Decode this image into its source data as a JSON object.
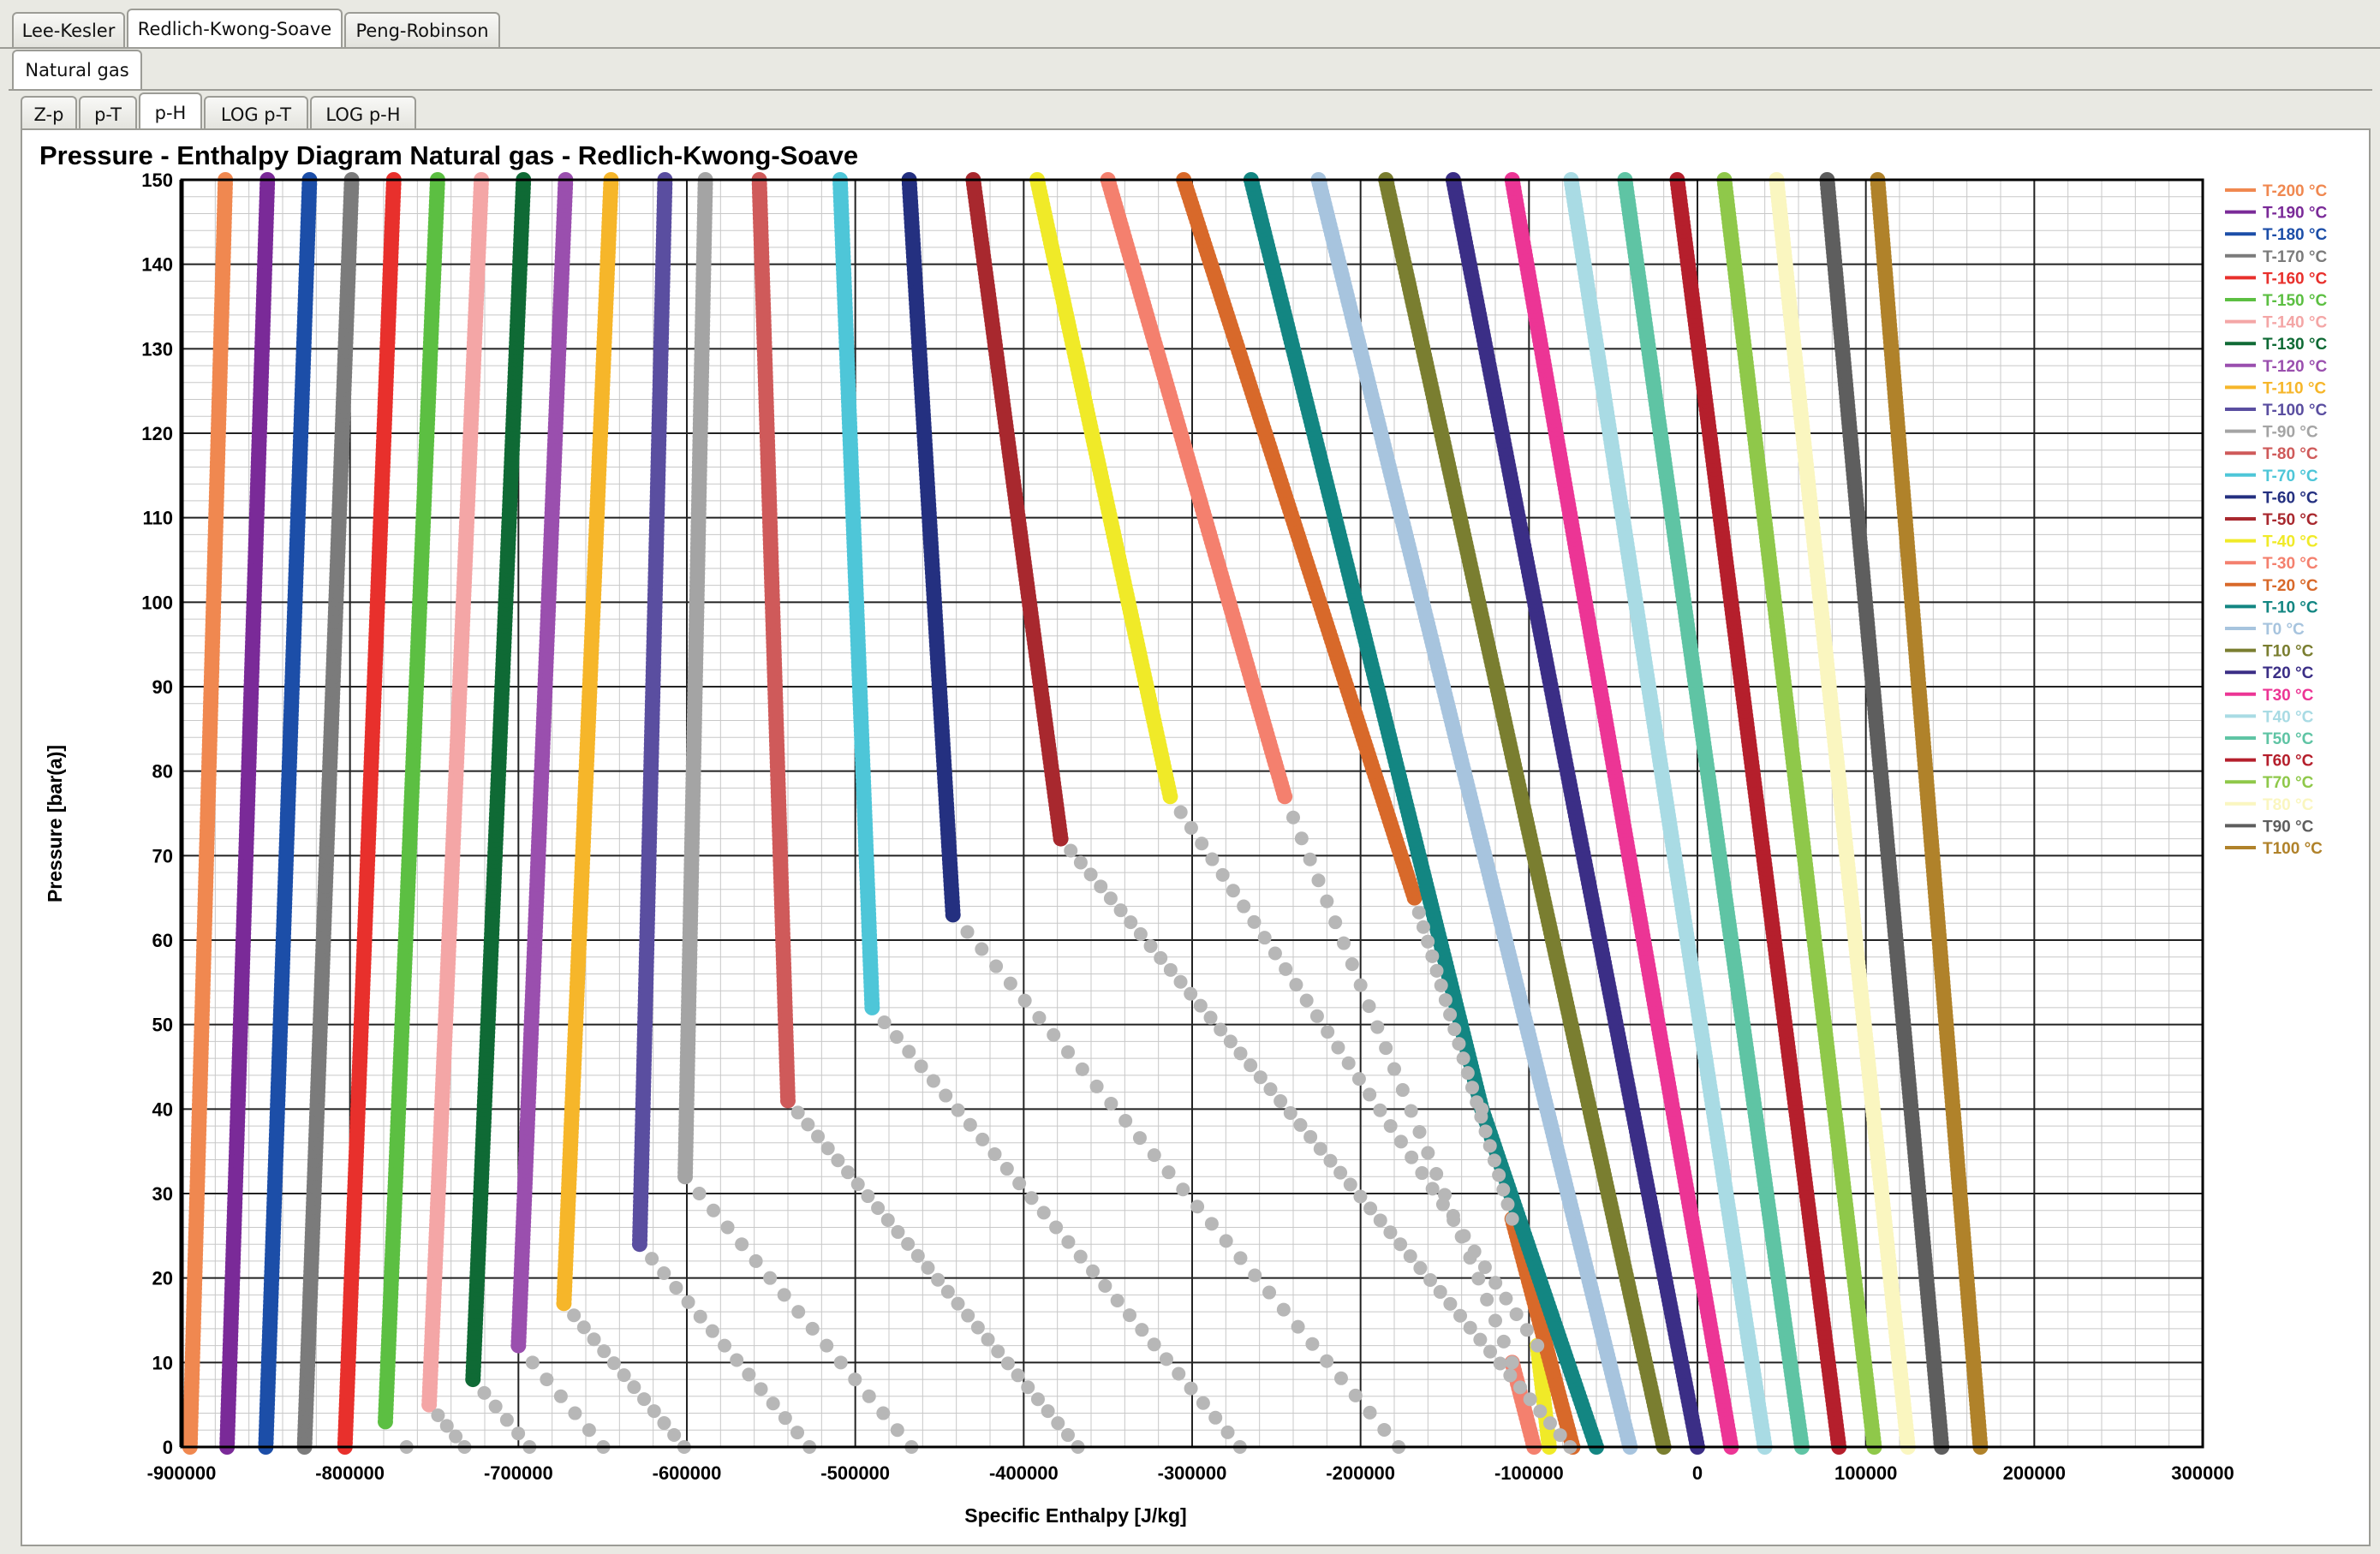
{
  "tabs_eos": [
    {
      "label": "Lee-Kesler",
      "active": false
    },
    {
      "label": "Redlich-Kwong-Soave",
      "active": true
    },
    {
      "label": "Peng-Robinson",
      "active": false
    }
  ],
  "tabs_fluid": [
    {
      "label": "Natural gas",
      "active": true
    }
  ],
  "tabs_view": [
    {
      "label": "Z-p",
      "active": false
    },
    {
      "label": "p-T",
      "active": false
    },
    {
      "label": "p-H",
      "active": true
    },
    {
      "label": "LOG p-T",
      "active": false
    },
    {
      "label": "LOG p-H",
      "active": false
    }
  ],
  "chart_data": {
    "type": "scatter",
    "title": "Pressure - Enthalpy Diagram Natural gas - Redlich-Kwong-Soave",
    "xlabel": "Specific Enthalpy [J/kg]",
    "ylabel": "Pressure [bar(a)]",
    "xlim": [
      -900000,
      300000
    ],
    "ylim": [
      0,
      150
    ],
    "xticks": [
      -900000,
      -800000,
      -700000,
      -600000,
      -500000,
      -400000,
      -300000,
      -200000,
      -100000,
      0,
      100000,
      200000,
      300000
    ],
    "yticks": [
      0,
      10,
      20,
      30,
      40,
      50,
      60,
      70,
      80,
      90,
      100,
      110,
      120,
      130,
      140,
      150
    ],
    "grid": true,
    "legend_position": "right",
    "series": [
      {
        "name": "T-200 °C",
        "color": "#f08850",
        "label_color": "#f08850",
        "liquid": [
          [
            -895000,
            0
          ],
          [
            -874000,
            150
          ]
        ]
      },
      {
        "name": "T-190 °C",
        "color": "#7a2a98",
        "label_color": "#7a2a98",
        "liquid": [
          [
            -873000,
            0
          ],
          [
            -849000,
            150
          ]
        ]
      },
      {
        "name": "T-180 °C",
        "color": "#1c4ea8",
        "label_color": "#1c4ea8",
        "liquid": [
          [
            -850000,
            0
          ],
          [
            -824000,
            150
          ]
        ]
      },
      {
        "name": "T-170 °C",
        "color": "#7b7b7b",
        "label_color": "#7b7b7b",
        "liquid": [
          [
            -827000,
            0
          ],
          [
            -799000,
            150
          ]
        ]
      },
      {
        "name": "T-160 °C",
        "color": "#e8302c",
        "label_color": "#e8302c",
        "liquid": [
          [
            -803000,
            0
          ],
          [
            -774000,
            150
          ]
        ]
      },
      {
        "name": "T-150 °C",
        "color": "#5cbf42",
        "label_color": "#5cbf42",
        "liquid": [
          [
            -779000,
            3
          ],
          [
            -748000,
            150
          ]
        ]
      },
      {
        "name": "T-140 °C",
        "color": "#f4a6a6",
        "label_color": "#f4a6a6",
        "liquid": [
          [
            -753000,
            5
          ],
          [
            -722000,
            150
          ]
        ]
      },
      {
        "name": "T-130 °C",
        "color": "#0f6a35",
        "label_color": "#0f6a35",
        "liquid": [
          [
            -727000,
            8
          ],
          [
            -697000,
            150
          ]
        ]
      },
      {
        "name": "T-120 °C",
        "color": "#9a4fae",
        "label_color": "#9a4fae",
        "liquid": [
          [
            -700000,
            12
          ],
          [
            -672000,
            150
          ]
        ]
      },
      {
        "name": "T-110 °C",
        "color": "#f6b62a",
        "label_color": "#f6b62a",
        "liquid": [
          [
            -673000,
            17
          ],
          [
            -645000,
            150
          ]
        ]
      },
      {
        "name": "T-100 °C",
        "color": "#5a4ea0",
        "label_color": "#5a4ea0",
        "liquid": [
          [
            -628000,
            24
          ],
          [
            -613000,
            150
          ]
        ]
      },
      {
        "name": "T-90 °C",
        "color": "#a4a4a4",
        "label_color": "#a4a4a4",
        "liquid": [
          [
            -601000,
            32
          ],
          [
            -589000,
            150
          ]
        ]
      },
      {
        "name": "T-80 °C",
        "color": "#cf5a5a",
        "label_color": "#cf5a5a",
        "liquid": [
          [
            -540000,
            41
          ],
          [
            -557000,
            150
          ]
        ]
      },
      {
        "name": "T-70 °C",
        "color": "#4ec6d8",
        "label_color": "#4ec6d8",
        "liquid": [
          [
            -490000,
            52
          ],
          [
            -509000,
            150
          ]
        ]
      },
      {
        "name": "T-60 °C",
        "color": "#243080",
        "label_color": "#243080",
        "liquid": [
          [
            -442000,
            63
          ],
          [
            -468000,
            150
          ]
        ]
      },
      {
        "name": "T-50 °C",
        "color": "#a8282e",
        "label_color": "#a8282e",
        "liquid": [
          [
            -378000,
            72
          ],
          [
            -430000,
            150
          ]
        ]
      },
      {
        "name": "T-40 °C",
        "color": "#f0ea28",
        "label_color": "#f0ea28",
        "liquid": [
          [
            -313000,
            77
          ],
          [
            -392000,
            150
          ]
        ],
        "vapor": [
          [
            -95000,
            12
          ],
          [
            -88000,
            0
          ]
        ]
      },
      {
        "name": "T-30 °C",
        "color": "#f4806e",
        "label_color": "#f4806e",
        "liquid": [
          [
            -245000,
            77
          ],
          [
            -350000,
            150
          ]
        ],
        "vapor": [
          [
            -110000,
            10
          ],
          [
            -97000,
            0
          ]
        ]
      },
      {
        "name": "T-20 °C",
        "color": "#d8692a",
        "label_color": "#d8692a",
        "liquid": [
          [
            -168000,
            65
          ],
          [
            -305000,
            150
          ]
        ],
        "vapor": [
          [
            -110000,
            27
          ],
          [
            -74000,
            0
          ]
        ]
      },
      {
        "name": "T-10 °C",
        "color": "#138682",
        "label_color": "#138682",
        "liquid": [
          [
            -128000,
            40
          ],
          [
            -265000,
            150
          ]
        ],
        "vapor": [
          [
            -128000,
            40
          ],
          [
            -60000,
            0
          ]
        ]
      },
      {
        "name": "T0 °C",
        "color": "#a7c4de",
        "label_color": "#a7c4de",
        "liquid": [
          [
            -40000,
            0
          ],
          [
            -225000,
            150
          ]
        ]
      },
      {
        "name": "T10 °C",
        "color": "#7a7e30",
        "label_color": "#7a7e30",
        "liquid": [
          [
            -20000,
            0
          ],
          [
            -185000,
            150
          ]
        ]
      },
      {
        "name": "T20 °C",
        "color": "#3b2e86",
        "label_color": "#3b2e86",
        "liquid": [
          [
            0,
            0
          ],
          [
            -145000,
            150
          ]
        ]
      },
      {
        "name": "T30 °C",
        "color": "#ec3595",
        "label_color": "#ec3595",
        "liquid": [
          [
            20000,
            0
          ],
          [
            -110000,
            150
          ]
        ]
      },
      {
        "name": "T40 °C",
        "color": "#a9dbe4",
        "label_color": "#a9dbe4",
        "liquid": [
          [
            40000,
            0
          ],
          [
            -75000,
            150
          ]
        ]
      },
      {
        "name": "T50 °C",
        "color": "#5fc4a4",
        "label_color": "#5fc4a4",
        "liquid": [
          [
            62000,
            0
          ],
          [
            -43000,
            150
          ]
        ]
      },
      {
        "name": "T60 °C",
        "color": "#b51f2c",
        "label_color": "#b51f2c",
        "liquid": [
          [
            84000,
            0
          ],
          [
            -12000,
            150
          ]
        ]
      },
      {
        "name": "T70 °C",
        "color": "#8fc84a",
        "label_color": "#8fc84a",
        "liquid": [
          [
            105000,
            0
          ],
          [
            16000,
            150
          ]
        ]
      },
      {
        "name": "T80 °C",
        "color": "#faf6c0",
        "label_color": "#faf6c0",
        "liquid": [
          [
            125000,
            0
          ],
          [
            47000,
            150
          ]
        ]
      },
      {
        "name": "T90 °C",
        "color": "#5e5e5e",
        "label_color": "#5e5e5e",
        "liquid": [
          [
            145000,
            0
          ],
          [
            77000,
            150
          ]
        ]
      },
      {
        "name": "T100 °C",
        "color": "#b0822a",
        "label_color": "#b0822a",
        "liquid": [
          [
            168000,
            0
          ],
          [
            107000,
            150
          ]
        ]
      }
    ],
    "two_phase_color": "#b7b7b7"
  }
}
